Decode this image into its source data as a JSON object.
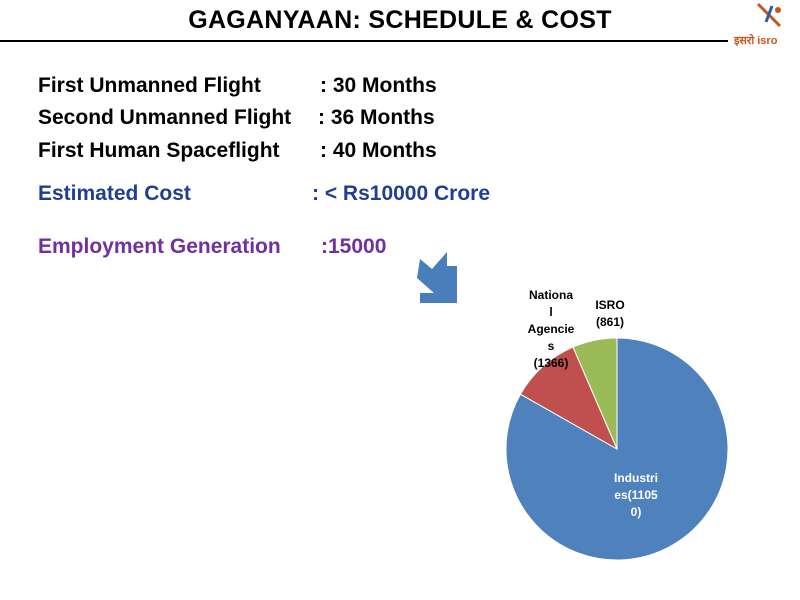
{
  "header": {
    "title": "GAGANYAAN: SCHEDULE & COST",
    "logo_text": "इसरो isro"
  },
  "schedule": [
    {
      "label": "First Unmanned Flight",
      "value": ": 30 Months"
    },
    {
      "label": "Second Unmanned Flight",
      "value": ": 36 Months"
    },
    {
      "label": "First Human Spaceflight",
      "value": ": 40 Months"
    }
  ],
  "cost": {
    "label": "Estimated Cost",
    "value": ": < Rs10000 Crore"
  },
  "employment": {
    "label": "Employment Generation",
    "value": ":15000"
  },
  "colors": {
    "cost_text": "#1f3f93",
    "employment_text": "#7030a0",
    "arrow": "#4a7ebb",
    "industries": "#4f81bd",
    "national_agencies": "#c0504d",
    "isro": "#9bbb59"
  },
  "chart_data": {
    "type": "pie",
    "categories": [
      "Industries",
      "National Agencies",
      "ISRO"
    ],
    "values": [
      11050,
      1366,
      861
    ],
    "labels": [
      [
        "Industri",
        "es(1105",
        "0)"
      ],
      [
        "Nationa",
        "l",
        "Agencie",
        "s",
        "(1366)"
      ],
      [
        "ISRO",
        "(861)"
      ]
    ]
  }
}
